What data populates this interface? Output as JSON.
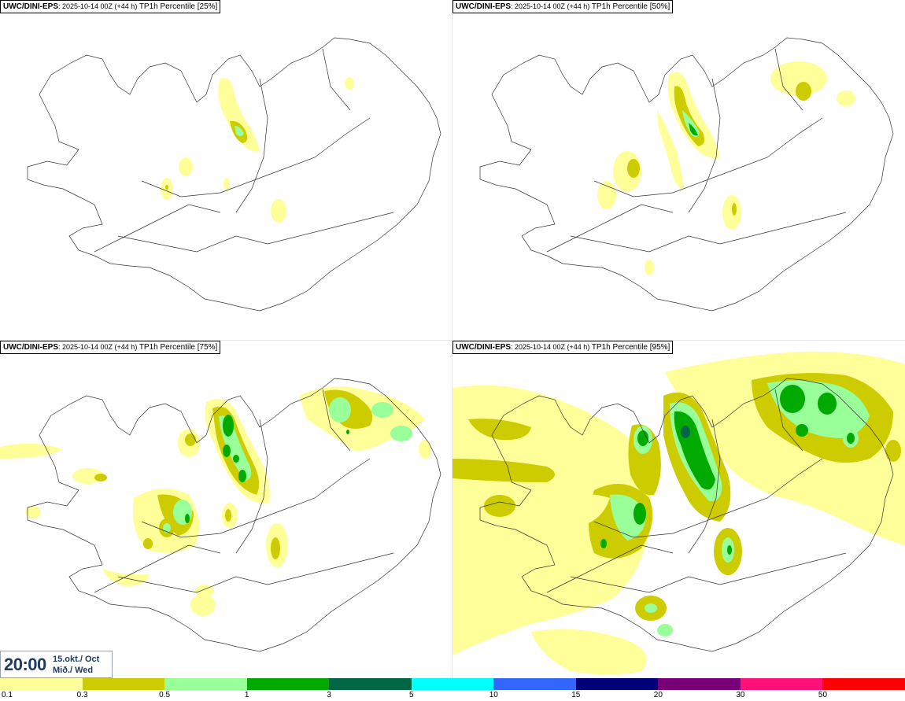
{
  "panels": [
    {
      "model": "UWC/DINI-EPS",
      "run": ": 2025-10-14 00Z (+44 h) ",
      "param": "TP1h Percentile [25%]"
    },
    {
      "model": "UWC/DINI-EPS",
      "run": ": 2025-10-14 00Z (+44 h) ",
      "param": "TP1h Percentile [50%]"
    },
    {
      "model": "UWC/DINI-EPS",
      "run": ": 2025-10-14 00Z (+44 h) ",
      "param": "TP1h Percentile [75%]"
    },
    {
      "model": "UWC/DINI-EPS",
      "run": ": 2025-10-14 00Z (+44 h) ",
      "param": "TP1h Percentile [95%]"
    }
  ],
  "valid_time": {
    "time": "20:00",
    "date_line1": "15.okt./ Oct",
    "date_line2": "Mið./ Wed"
  },
  "legend": {
    "colors": [
      "#ffff99",
      "#cccc00",
      "#99ff99",
      "#00aa00",
      "#006644",
      "#00ffff",
      "#3366ff",
      "#000077",
      "#770077",
      "#ff1177",
      "#ff0000"
    ],
    "labels": [
      "0.1",
      "0.3",
      "0.5",
      "1",
      "3",
      "5",
      "10",
      "15",
      "20",
      "30",
      "50"
    ]
  },
  "palette": {
    "light": "#ffff99",
    "mid": "#cccc00",
    "pale_green": "#99ff99",
    "green": "#00aa00",
    "dark": "#006644"
  }
}
